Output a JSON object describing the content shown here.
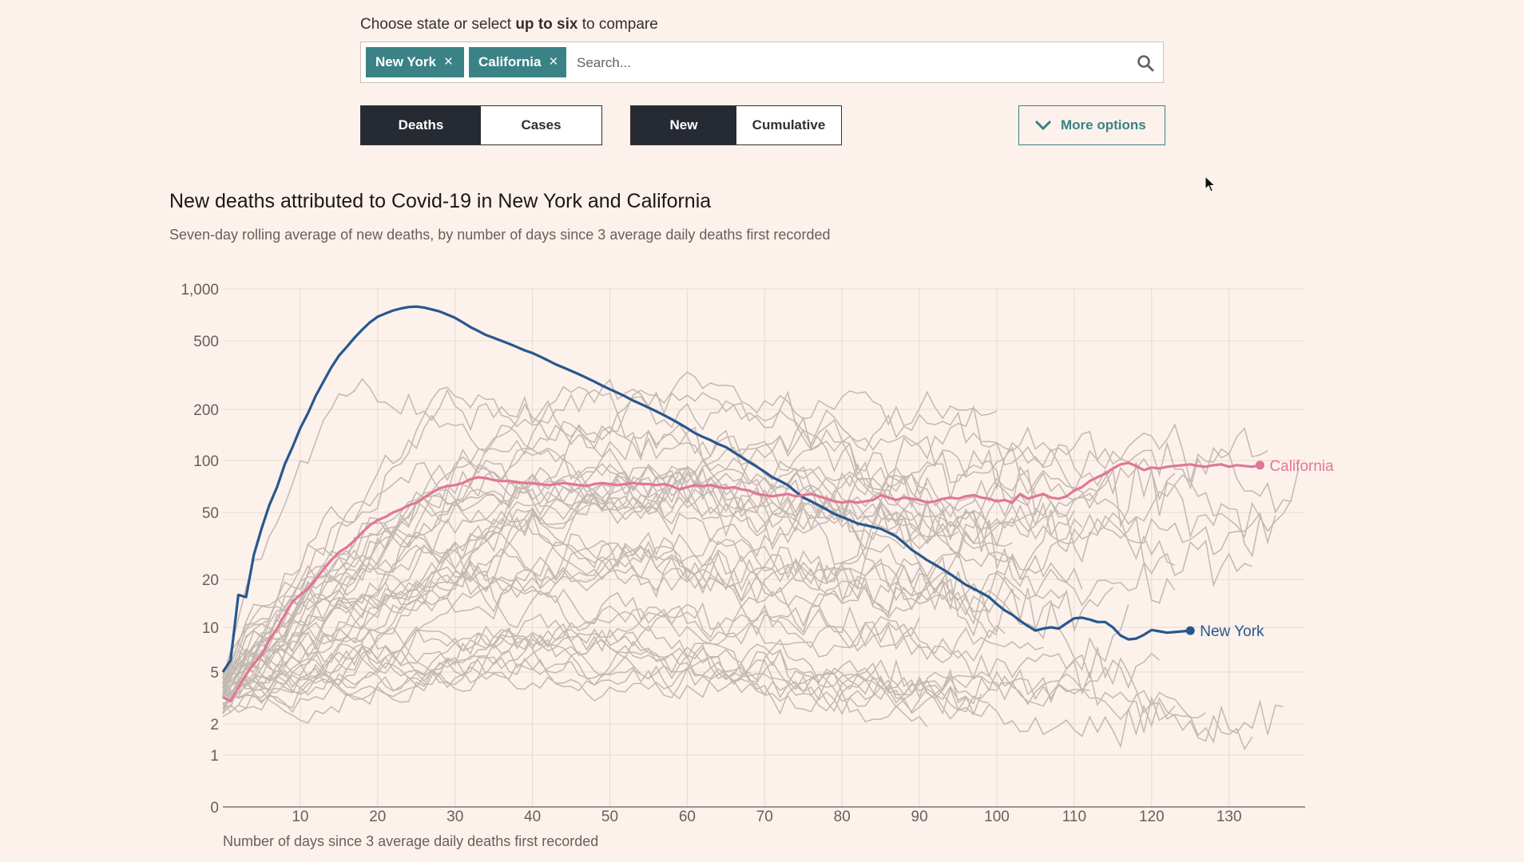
{
  "controls": {
    "prompt_prefix": "Choose state or select ",
    "prompt_bold": "up to six",
    "prompt_suffix": " to compare",
    "tags": [
      {
        "label": "New York",
        "remove": "×"
      },
      {
        "label": "California",
        "remove": "×"
      }
    ],
    "search_placeholder": "Search...",
    "metric_toggle": {
      "options": [
        "Deaths",
        "Cases"
      ],
      "selected": "Deaths"
    },
    "mode_toggle": {
      "options": [
        "New",
        "Cumulative"
      ],
      "selected": "New"
    },
    "more_options": "More options"
  },
  "colors": {
    "accent": "#3a8285",
    "new_york": "#26588e",
    "california": "#e07698",
    "background_lines": "#c2b9b1",
    "background": "#fdf1eb"
  },
  "chart_data": {
    "type": "line",
    "title": "New deaths attributed to Covid-19 in New York and California",
    "subtitle": "Seven-day rolling average of new deaths, by number of days since 3 average daily deaths first recorded",
    "xlabel": "Number of days since 3 average daily deaths first recorded",
    "ylabel": "",
    "y_scale": "log (symlog near zero)",
    "x_ticks": [
      10,
      20,
      30,
      40,
      50,
      60,
      70,
      80,
      90,
      100,
      110,
      120,
      130
    ],
    "y_ticks": [
      "1,000",
      "500",
      "200",
      "100",
      "50",
      "20",
      "10",
      "5",
      "2",
      "1",
      "0"
    ],
    "y_tick_values": [
      1000,
      500,
      200,
      100,
      50,
      20,
      10,
      5,
      2,
      1,
      0
    ],
    "xlim": [
      0,
      140
    ],
    "ylim": [
      0,
      1000
    ],
    "grid": true,
    "series": [
      {
        "name": "New York",
        "color": "#26588e",
        "points": [
          [
            0,
            5
          ],
          [
            1,
            6
          ],
          [
            2,
            16
          ],
          [
            3,
            15.5
          ],
          [
            4,
            28
          ],
          [
            5,
            40
          ],
          [
            6,
            55
          ],
          [
            7,
            70
          ],
          [
            8,
            95
          ],
          [
            9,
            120
          ],
          [
            10,
            155
          ],
          [
            11,
            190
          ],
          [
            12,
            240
          ],
          [
            13,
            290
          ],
          [
            14,
            350
          ],
          [
            15,
            410
          ],
          [
            16,
            460
          ],
          [
            17,
            520
          ],
          [
            18,
            580
          ],
          [
            19,
            640
          ],
          [
            20,
            690
          ],
          [
            21,
            720
          ],
          [
            22,
            750
          ],
          [
            23,
            770
          ],
          [
            24,
            785
          ],
          [
            25,
            790
          ],
          [
            26,
            780
          ],
          [
            27,
            760
          ],
          [
            28,
            740
          ],
          [
            29,
            710
          ],
          [
            30,
            680
          ],
          [
            31,
            640
          ],
          [
            32,
            600
          ],
          [
            33,
            570
          ],
          [
            34,
            540
          ],
          [
            35,
            520
          ],
          [
            36,
            500
          ],
          [
            37,
            480
          ],
          [
            38,
            460
          ],
          [
            39,
            440
          ],
          [
            40,
            425
          ],
          [
            41,
            405
          ],
          [
            42,
            385
          ],
          [
            43,
            365
          ],
          [
            44,
            350
          ],
          [
            45,
            335
          ],
          [
            46,
            320
          ],
          [
            47,
            305
          ],
          [
            48,
            290
          ],
          [
            49,
            275
          ],
          [
            50,
            262
          ],
          [
            51,
            250
          ],
          [
            52,
            238
          ],
          [
            53,
            225
          ],
          [
            54,
            215
          ],
          [
            55,
            205
          ],
          [
            56,
            195
          ],
          [
            57,
            185
          ],
          [
            58,
            175
          ],
          [
            59,
            165
          ],
          [
            60,
            155
          ],
          [
            61,
            145
          ],
          [
            62,
            138
          ],
          [
            63,
            132
          ],
          [
            64,
            125
          ],
          [
            65,
            120
          ],
          [
            66,
            112
          ],
          [
            67,
            105
          ],
          [
            68,
            98
          ],
          [
            69,
            92
          ],
          [
            70,
            86
          ],
          [
            71,
            80
          ],
          [
            72,
            76
          ],
          [
            73,
            72
          ],
          [
            74,
            66
          ],
          [
            75,
            61
          ],
          [
            76,
            58
          ],
          [
            77,
            55
          ],
          [
            78,
            52
          ],
          [
            79,
            49
          ],
          [
            80,
            47
          ],
          [
            81,
            45
          ],
          [
            82,
            43
          ],
          [
            83,
            42
          ],
          [
            84,
            41
          ],
          [
            85,
            40
          ],
          [
            86,
            38
          ],
          [
            87,
            36
          ],
          [
            88,
            33
          ],
          [
            89,
            30
          ],
          [
            90,
            28
          ],
          [
            91,
            26
          ],
          [
            92,
            24.5
          ],
          [
            93,
            23
          ],
          [
            94,
            21.5
          ],
          [
            95,
            20
          ],
          [
            96,
            18.5
          ],
          [
            97,
            17.5
          ],
          [
            98,
            16.5
          ],
          [
            99,
            15.5
          ],
          [
            100,
            14
          ],
          [
            101,
            12.8
          ],
          [
            102,
            12
          ],
          [
            103,
            11
          ],
          [
            104,
            10.2
          ],
          [
            105,
            9.5
          ],
          [
            106,
            9.8
          ],
          [
            107,
            10
          ],
          [
            108,
            9.8
          ],
          [
            109,
            10.6
          ],
          [
            110,
            11.4
          ],
          [
            111,
            11.5
          ],
          [
            112,
            11.2
          ],
          [
            113,
            10.8
          ],
          [
            114,
            10.8
          ],
          [
            115,
            10
          ],
          [
            116,
            8.8
          ],
          [
            117,
            8.3
          ],
          [
            118,
            8.4
          ],
          [
            119,
            8.9
          ],
          [
            120,
            9.6
          ],
          [
            121,
            9.4
          ],
          [
            122,
            9.2
          ],
          [
            123,
            9.3
          ],
          [
            124,
            9.4
          ],
          [
            125,
            9.5
          ]
        ]
      },
      {
        "name": "California",
        "color": "#e07698",
        "points": [
          [
            0,
            3.2
          ],
          [
            1,
            3.0
          ],
          [
            2,
            3.8
          ],
          [
            3,
            4.8
          ],
          [
            4,
            5.7
          ],
          [
            5,
            6.5
          ],
          [
            6,
            8.2
          ],
          [
            7,
            9.8
          ],
          [
            8,
            12
          ],
          [
            9,
            14.5
          ],
          [
            10,
            16
          ],
          [
            11,
            17.5
          ],
          [
            12,
            20
          ],
          [
            13,
            23
          ],
          [
            14,
            26
          ],
          [
            15,
            29
          ],
          [
            16,
            31
          ],
          [
            17,
            34
          ],
          [
            18,
            38
          ],
          [
            19,
            42
          ],
          [
            20,
            45
          ],
          [
            21,
            47
          ],
          [
            22,
            50
          ],
          [
            23,
            52
          ],
          [
            24,
            55
          ],
          [
            25,
            57
          ],
          [
            26,
            61
          ],
          [
            27,
            65
          ],
          [
            28,
            69
          ],
          [
            29,
            71
          ],
          [
            30,
            72
          ],
          [
            31,
            74
          ],
          [
            32,
            78
          ],
          [
            33,
            80
          ],
          [
            34,
            79
          ],
          [
            35,
            77
          ],
          [
            36,
            76
          ],
          [
            37,
            76
          ],
          [
            38,
            75
          ],
          [
            39,
            74
          ],
          [
            40,
            74
          ],
          [
            41,
            73
          ],
          [
            42,
            72
          ],
          [
            43,
            73
          ],
          [
            44,
            74
          ],
          [
            45,
            73
          ],
          [
            46,
            72
          ],
          [
            47,
            71
          ],
          [
            48,
            73
          ],
          [
            49,
            74
          ],
          [
            50,
            73
          ],
          [
            51,
            72
          ],
          [
            52,
            73
          ],
          [
            53,
            74
          ],
          [
            54,
            73
          ],
          [
            55,
            73
          ],
          [
            56,
            72
          ],
          [
            57,
            73
          ],
          [
            58,
            71
          ],
          [
            59,
            68
          ],
          [
            60,
            70
          ],
          [
            61,
            72
          ],
          [
            62,
            71
          ],
          [
            63,
            72
          ],
          [
            64,
            70
          ],
          [
            65,
            69
          ],
          [
            66,
            70
          ],
          [
            67,
            68
          ],
          [
            68,
            67
          ],
          [
            69,
            64
          ],
          [
            70,
            63
          ],
          [
            71,
            62
          ],
          [
            72,
            63
          ],
          [
            73,
            64
          ],
          [
            74,
            62
          ],
          [
            75,
            63
          ],
          [
            76,
            64
          ],
          [
            77,
            62
          ],
          [
            78,
            60
          ],
          [
            79,
            58
          ],
          [
            80,
            57
          ],
          [
            81,
            58
          ],
          [
            82,
            57
          ],
          [
            83,
            58
          ],
          [
            84,
            59
          ],
          [
            85,
            63
          ],
          [
            86,
            61
          ],
          [
            87,
            59
          ],
          [
            88,
            61
          ],
          [
            89,
            60
          ],
          [
            90,
            59
          ],
          [
            91,
            57
          ],
          [
            92,
            58
          ],
          [
            93,
            60
          ],
          [
            94,
            61
          ],
          [
            95,
            60
          ],
          [
            96,
            62
          ],
          [
            97,
            63
          ],
          [
            98,
            61
          ],
          [
            99,
            60
          ],
          [
            100,
            58
          ],
          [
            101,
            59
          ],
          [
            102,
            57
          ],
          [
            103,
            64
          ],
          [
            104,
            60
          ],
          [
            105,
            62
          ],
          [
            106,
            64
          ],
          [
            107,
            61
          ],
          [
            108,
            60
          ],
          [
            109,
            62
          ],
          [
            110,
            67
          ],
          [
            111,
            70
          ],
          [
            112,
            76
          ],
          [
            113,
            80
          ],
          [
            114,
            84
          ],
          [
            115,
            90
          ],
          [
            116,
            95
          ],
          [
            117,
            97
          ],
          [
            118,
            93
          ],
          [
            119,
            88
          ],
          [
            120,
            91
          ],
          [
            121,
            90
          ],
          [
            122,
            92
          ],
          [
            123,
            93
          ],
          [
            124,
            94
          ],
          [
            125,
            95
          ],
          [
            126,
            93
          ],
          [
            127,
            92
          ],
          [
            128,
            94
          ],
          [
            129,
            95
          ],
          [
            130,
            92
          ],
          [
            131,
            94
          ],
          [
            132,
            93
          ],
          [
            133,
            92
          ],
          [
            134,
            94
          ]
        ]
      }
    ],
    "end_labels": [
      {
        "series": "California",
        "text": "California"
      },
      {
        "series": "New York",
        "text": "New York"
      }
    ],
    "background_series_count": 40
  }
}
